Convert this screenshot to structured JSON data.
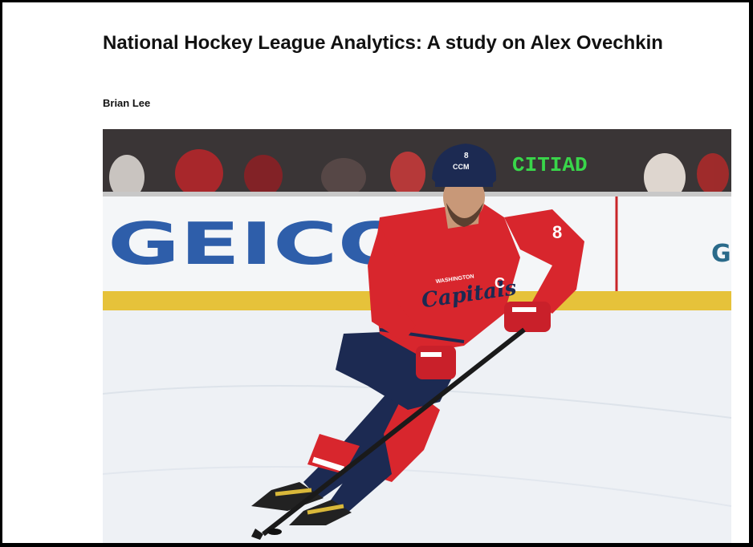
{
  "article": {
    "title": "National Hockey League Analytics: A study on Alex Ovechkin",
    "author": "Brian Lee"
  },
  "hero_image": {
    "board_text": "GEICO",
    "board_text_right": "G",
    "scoreboard_text": "CITIAD",
    "jersey_number": "8",
    "jersey_wordmark": "Capitals",
    "jersey_small_text": "WASHINGTON",
    "captain_letter": "C",
    "helmet_brand": "CCM",
    "colors": {
      "jersey_red": "#d8262d",
      "navy": "#1c2a52",
      "board_blue": "#2e5eaa",
      "board_yellow": "#e6c23a",
      "scoreboard_green": "#39d64a"
    }
  }
}
